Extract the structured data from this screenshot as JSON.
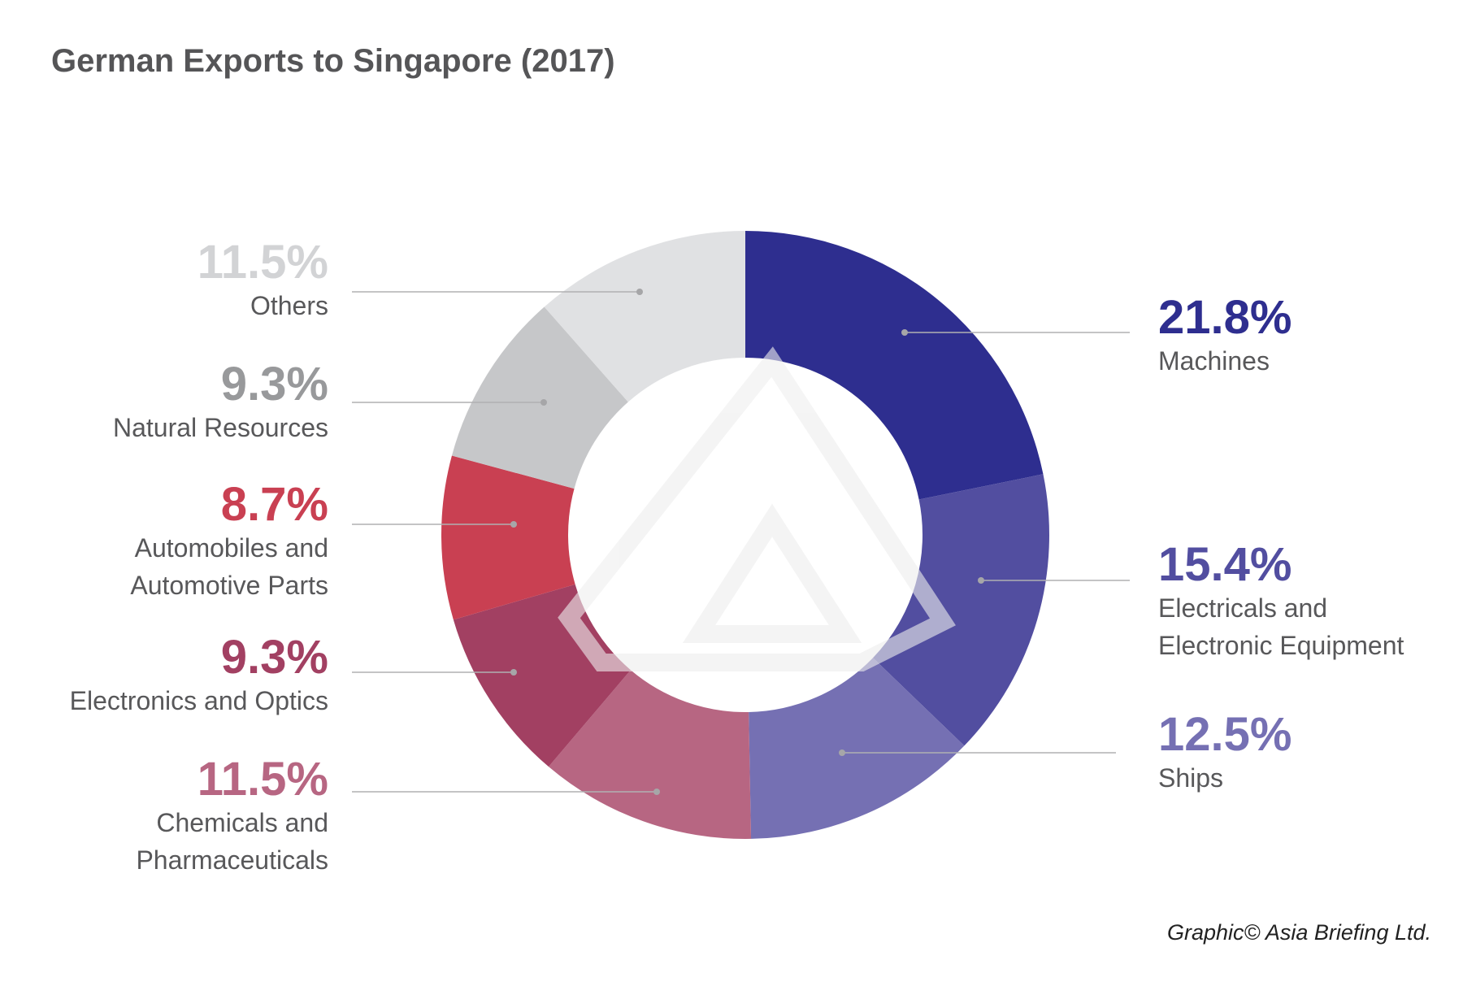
{
  "chart_data": {
    "type": "pie",
    "donut": true,
    "title": "German Exports to Singapore (2017)",
    "unit": "%",
    "slices": [
      {
        "label": "Machines",
        "lines": [
          "Machines"
        ],
        "value": 21.8,
        "value_label": "21.8%",
        "color": "#2e2e8f"
      },
      {
        "label": "Electricals and Electronic Equipment",
        "lines": [
          "Electricals and",
          "Electronic Equipment"
        ],
        "value": 15.4,
        "value_label": "15.4%",
        "color": "#524ea0"
      },
      {
        "label": "Ships",
        "lines": [
          "Ships"
        ],
        "value": 12.5,
        "value_label": "12.5%",
        "color": "#7570b3"
      },
      {
        "label": "Chemicals and Pharmaceuticals",
        "lines": [
          "Chemicals and",
          "Pharmaceuticals"
        ],
        "value": 11.5,
        "value_label": "11.5%",
        "color": "#b76682"
      },
      {
        "label": "Electronics and Optics",
        "lines": [
          "Electronics and Optics"
        ],
        "value": 9.3,
        "value_label": "9.3%",
        "color": "#a24062"
      },
      {
        "label": "Automobiles and Automotive Parts",
        "lines": [
          "Automobiles and",
          "Automotive Parts"
        ],
        "value": 8.7,
        "value_label": "8.7%",
        "color": "#c94052"
      },
      {
        "label": "Natural Resources",
        "lines": [
          "Natural Resources"
        ],
        "value": 9.3,
        "value_label": "9.3%",
        "color": "#c6c7c9",
        "label_color": "#98999b"
      },
      {
        "label": "Others",
        "lines": [
          "Others"
        ],
        "value": 11.5,
        "value_label": "11.5%",
        "color": "#e0e1e3",
        "label_color": "#d2d3d5"
      }
    ],
    "legend": "none (direct labels)"
  },
  "footer": "Graphic© Asia Briefing Ltd."
}
